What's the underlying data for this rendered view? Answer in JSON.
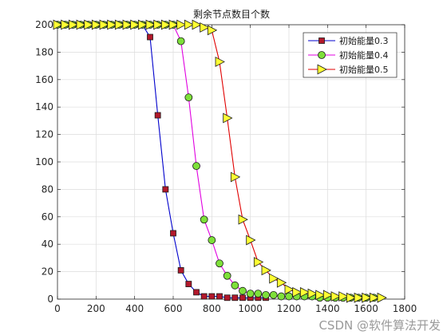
{
  "chart_data": {
    "type": "line",
    "title": "剩余节点数目个数",
    "xlabel": "",
    "ylabel": "",
    "xlim": [
      0,
      1800
    ],
    "ylim": [
      0,
      200
    ],
    "xticks": [
      0,
      200,
      400,
      600,
      800,
      1000,
      1200,
      1400,
      1600,
      1800
    ],
    "yticks": [
      0,
      20,
      40,
      60,
      80,
      100,
      120,
      140,
      160,
      180,
      200
    ],
    "grid": true,
    "legend_position": "top-right",
    "series": [
      {
        "name": "初始能量0.3",
        "color": "#0000cc",
        "marker": "square",
        "marker_fill": "#b2182b",
        "x": [
          0,
          40,
          80,
          120,
          160,
          200,
          240,
          280,
          320,
          360,
          400,
          440,
          480,
          520,
          560,
          600,
          640,
          680,
          720,
          760,
          800,
          840,
          880,
          920,
          960,
          1000,
          1040,
          1080
        ],
        "y": [
          200,
          200,
          200,
          200,
          200,
          200,
          200,
          200,
          200,
          200,
          200,
          200,
          191,
          134,
          80,
          48,
          21,
          11,
          5,
          2,
          2,
          2,
          1,
          1,
          1,
          1,
          1,
          1
        ]
      },
      {
        "name": "初始能量0.4",
        "color": "#e000e0",
        "marker": "circle",
        "marker_fill": "#7ee03a",
        "x": [
          0,
          40,
          80,
          120,
          160,
          200,
          240,
          280,
          320,
          360,
          400,
          440,
          480,
          520,
          560,
          600,
          640,
          680,
          720,
          760,
          800,
          840,
          880,
          920,
          960,
          1000,
          1040,
          1080,
          1120,
          1160,
          1200,
          1240,
          1280,
          1320,
          1360,
          1400,
          1440,
          1480,
          1520,
          1560,
          1600,
          1640
        ],
        "y": [
          200,
          200,
          200,
          200,
          200,
          200,
          200,
          200,
          200,
          200,
          200,
          200,
          200,
          200,
          200,
          200,
          188,
          147,
          97,
          58,
          43,
          26,
          17,
          10,
          6,
          4,
          4,
          3,
          3,
          2,
          2,
          2,
          2,
          2,
          1,
          1,
          1,
          1,
          1,
          1,
          1,
          1
        ]
      },
      {
        "name": "初始能量0.5",
        "color": "#e00000",
        "marker": "triangle-right",
        "marker_fill": "#ffff33",
        "x": [
          0,
          40,
          80,
          120,
          160,
          200,
          240,
          280,
          320,
          360,
          400,
          440,
          480,
          520,
          560,
          600,
          640,
          680,
          720,
          760,
          800,
          840,
          880,
          920,
          960,
          1000,
          1040,
          1080,
          1120,
          1160,
          1200,
          1240,
          1280,
          1320,
          1360,
          1400,
          1440,
          1480,
          1520,
          1560,
          1600,
          1640,
          1680
        ],
        "y": [
          200,
          200,
          200,
          200,
          200,
          200,
          200,
          200,
          200,
          200,
          200,
          200,
          200,
          200,
          200,
          200,
          200,
          200,
          200,
          198,
          196,
          173,
          132,
          89,
          58,
          43,
          27,
          21,
          15,
          12,
          7,
          5,
          5,
          4,
          3,
          3,
          2,
          2,
          1,
          1,
          1,
          1,
          1
        ]
      }
    ]
  },
  "watermark": "CSDN @软件算法开发"
}
